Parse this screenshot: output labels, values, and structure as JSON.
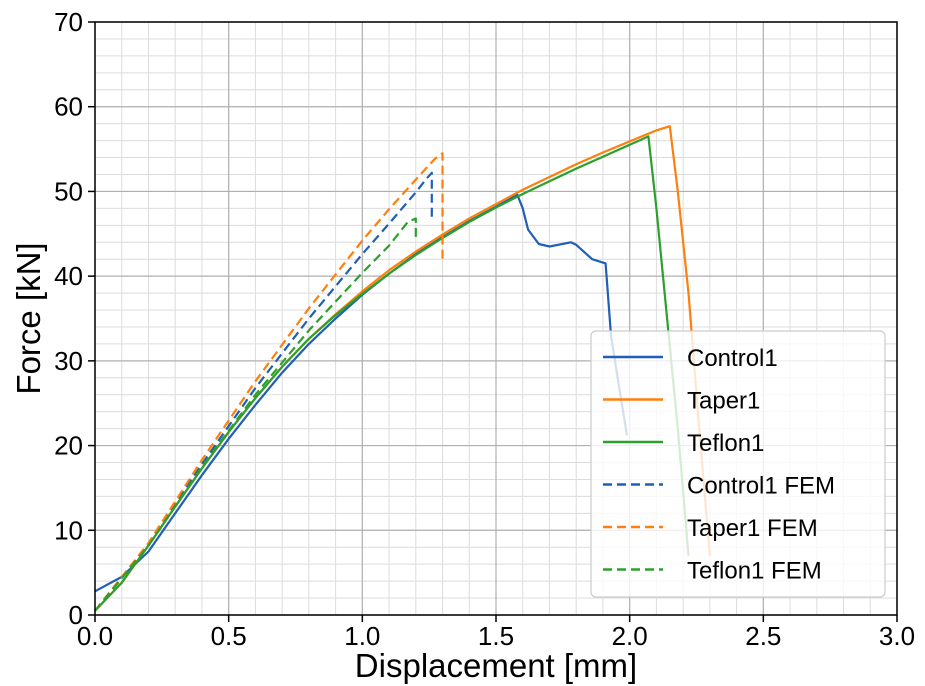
{
  "chart_data": {
    "type": "line",
    "title": "",
    "xlabel": "Displacement [mm]",
    "ylabel": "Force [kN]",
    "xlim": [
      0.0,
      3.0
    ],
    "ylim": [
      0,
      70
    ],
    "x_ticks": [
      0.0,
      0.5,
      1.0,
      1.5,
      2.0,
      2.5,
      3.0
    ],
    "x_tick_labels": [
      "0.0",
      "0.5",
      "1.0",
      "1.5",
      "2.0",
      "2.5",
      "3.0"
    ],
    "y_ticks": [
      0,
      10,
      20,
      30,
      40,
      50,
      60,
      70
    ],
    "y_tick_labels": [
      "0",
      "10",
      "20",
      "30",
      "40",
      "50",
      "60",
      "70"
    ],
    "grid": true,
    "minor_grid": true,
    "legend_position": "bottom-right",
    "series": [
      {
        "name": "Control1",
        "color": "#1f5fb4",
        "dash": "solid",
        "points": [
          [
            0.0,
            2.8
          ],
          [
            0.1,
            4.5
          ],
          [
            0.2,
            7.5
          ],
          [
            0.3,
            12.0
          ],
          [
            0.4,
            16.5
          ],
          [
            0.5,
            20.8
          ],
          [
            0.6,
            24.8
          ],
          [
            0.7,
            28.6
          ],
          [
            0.8,
            32.0
          ],
          [
            0.9,
            35.0
          ],
          [
            1.0,
            37.8
          ],
          [
            1.1,
            40.3
          ],
          [
            1.2,
            42.6
          ],
          [
            1.3,
            44.6
          ],
          [
            1.4,
            46.5
          ],
          [
            1.5,
            48.2
          ],
          [
            1.58,
            49.6
          ],
          [
            1.6,
            48.0
          ],
          [
            1.62,
            45.5
          ],
          [
            1.66,
            43.8
          ],
          [
            1.7,
            43.5
          ],
          [
            1.78,
            44.0
          ],
          [
            1.8,
            43.7
          ],
          [
            1.86,
            42.0
          ],
          [
            1.91,
            41.5
          ],
          [
            1.93,
            33.0
          ],
          [
            1.96,
            27.0
          ],
          [
            1.99,
            21.2
          ]
        ]
      },
      {
        "name": "Taper1",
        "color": "#ff7f0e",
        "dash": "solid",
        "points": [
          [
            0.0,
            0.5
          ],
          [
            0.1,
            3.8
          ],
          [
            0.2,
            8.2
          ],
          [
            0.3,
            12.8
          ],
          [
            0.4,
            17.3
          ],
          [
            0.5,
            21.6
          ],
          [
            0.6,
            25.6
          ],
          [
            0.7,
            29.3
          ],
          [
            0.8,
            32.6
          ],
          [
            0.9,
            35.5
          ],
          [
            1.0,
            38.2
          ],
          [
            1.1,
            40.7
          ],
          [
            1.2,
            42.9
          ],
          [
            1.3,
            44.9
          ],
          [
            1.4,
            46.8
          ],
          [
            1.5,
            48.5
          ],
          [
            1.6,
            50.2
          ],
          [
            1.7,
            51.7
          ],
          [
            1.8,
            53.2
          ],
          [
            1.9,
            54.6
          ],
          [
            2.0,
            55.9
          ],
          [
            2.1,
            57.2
          ],
          [
            2.15,
            57.7
          ],
          [
            2.18,
            50.0
          ],
          [
            2.22,
            38.0
          ],
          [
            2.26,
            22.0
          ],
          [
            2.3,
            7.0
          ]
        ]
      },
      {
        "name": "Teflon1",
        "color": "#2ca02c",
        "dash": "solid",
        "points": [
          [
            0.0,
            0.5
          ],
          [
            0.1,
            3.8
          ],
          [
            0.2,
            8.2
          ],
          [
            0.3,
            12.8
          ],
          [
            0.4,
            17.3
          ],
          [
            0.5,
            21.6
          ],
          [
            0.6,
            25.6
          ],
          [
            0.7,
            29.3
          ],
          [
            0.8,
            32.6
          ],
          [
            0.9,
            35.4
          ],
          [
            1.0,
            37.9
          ],
          [
            1.1,
            40.3
          ],
          [
            1.2,
            42.5
          ],
          [
            1.3,
            44.5
          ],
          [
            1.4,
            46.4
          ],
          [
            1.5,
            48.1
          ],
          [
            1.6,
            49.7
          ],
          [
            1.7,
            51.2
          ],
          [
            1.8,
            52.7
          ],
          [
            1.9,
            54.1
          ],
          [
            2.0,
            55.5
          ],
          [
            2.07,
            56.5
          ],
          [
            2.1,
            48.0
          ],
          [
            2.14,
            35.0
          ],
          [
            2.18,
            22.0
          ],
          [
            2.22,
            7.0
          ]
        ]
      },
      {
        "name": "Control1 FEM",
        "color": "#1f5fb4",
        "dash": "dashed",
        "points": [
          [
            0.0,
            0.5
          ],
          [
            0.2,
            8.3
          ],
          [
            0.4,
            17.8
          ],
          [
            0.6,
            26.8
          ],
          [
            0.8,
            35.0
          ],
          [
            1.0,
            42.6
          ],
          [
            1.1,
            46.2
          ],
          [
            1.2,
            49.9
          ],
          [
            1.24,
            51.5
          ],
          [
            1.26,
            52.2
          ],
          [
            1.26,
            47.0
          ]
        ]
      },
      {
        "name": "Taper1 FEM",
        "color": "#ff7f0e",
        "dash": "dashed",
        "points": [
          [
            0.0,
            0.5
          ],
          [
            0.2,
            8.5
          ],
          [
            0.4,
            18.3
          ],
          [
            0.6,
            27.6
          ],
          [
            0.8,
            36.2
          ],
          [
            1.0,
            44.2
          ],
          [
            1.1,
            47.9
          ],
          [
            1.2,
            51.4
          ],
          [
            1.27,
            53.8
          ],
          [
            1.3,
            54.5
          ],
          [
            1.3,
            41.5
          ]
        ]
      },
      {
        "name": "Teflon1 FEM",
        "color": "#2ca02c",
        "dash": "dashed",
        "points": [
          [
            0.0,
            0.5
          ],
          [
            0.2,
            8.2
          ],
          [
            0.4,
            17.5
          ],
          [
            0.6,
            26.0
          ],
          [
            0.8,
            33.6
          ],
          [
            1.0,
            40.4
          ],
          [
            1.1,
            43.6
          ],
          [
            1.17,
            46.4
          ],
          [
            1.2,
            46.8
          ],
          [
            1.2,
            44.2
          ]
        ]
      }
    ]
  }
}
